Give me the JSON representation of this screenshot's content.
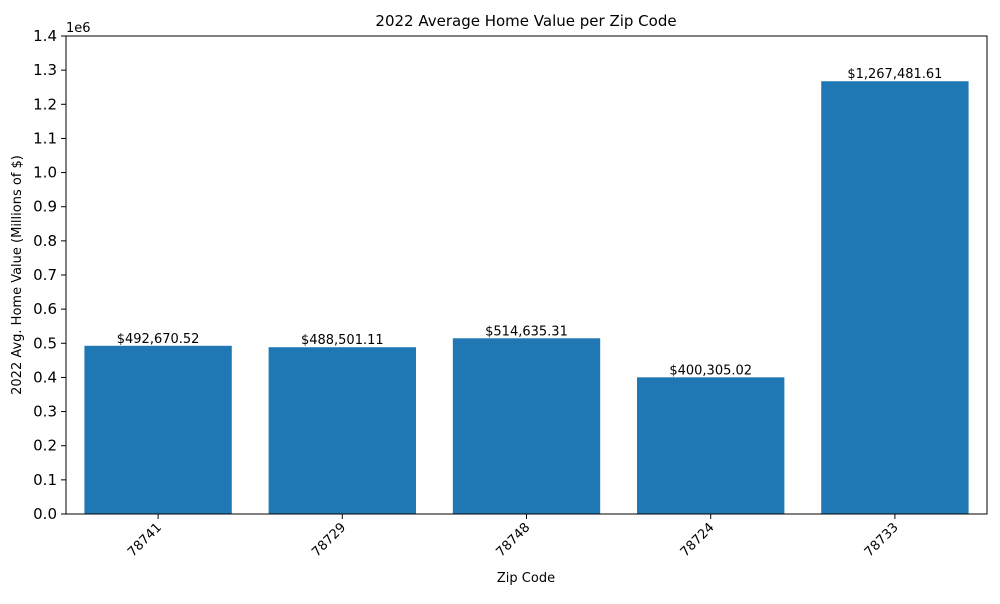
{
  "chart_data": {
    "type": "bar",
    "title": "2022 Average Home Value per Zip Code",
    "xlabel": "Zip Code",
    "ylabel": "2022 Avg. Home Value (Millions of $)",
    "offset_label": "1e6",
    "categories": [
      "78741",
      "78729",
      "78748",
      "78724",
      "78733"
    ],
    "values": [
      492670.52,
      488501.11,
      514635.31,
      400305.02,
      1267481.61
    ],
    "data_labels": [
      "$492,670.52",
      "$488,501.11",
      "$514,635.31",
      "$400,305.02",
      "$1,267,481.61"
    ],
    "ylim": [
      0,
      1400000
    ],
    "yticks": [
      "0.0",
      "0.1",
      "0.2",
      "0.3",
      "0.4",
      "0.5",
      "0.6",
      "0.7",
      "0.8",
      "0.9",
      "1.0",
      "1.1",
      "1.2",
      "1.3",
      "1.4"
    ],
    "grid": false,
    "bar_color": "#1f77b4"
  }
}
